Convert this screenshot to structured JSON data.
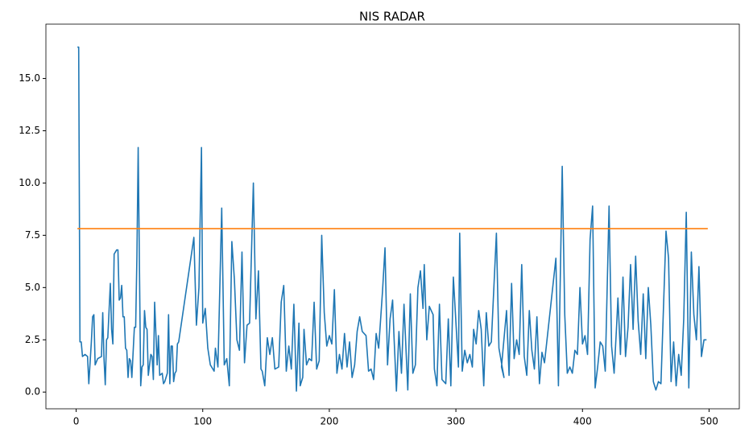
{
  "chart_data": {
    "type": "line",
    "title": "NIS RADAR",
    "xlim": [
      -23.9,
      523.9
    ],
    "ylim": [
      -0.8,
      17.6
    ],
    "xticks": [
      0,
      100,
      200,
      300,
      400,
      500
    ],
    "yticks": [
      {
        "value": 0,
        "label": "0.0"
      },
      {
        "value": 2.5,
        "label": "2.5"
      },
      {
        "value": 5,
        "label": "5.0"
      },
      {
        "value": 7.5,
        "label": "7.5"
      },
      {
        "value": 10,
        "label": "10.0"
      },
      {
        "value": 12.5,
        "label": "12.5"
      },
      {
        "value": 15,
        "label": "15.0"
      }
    ],
    "series": [
      {
        "color": "#1f77b4",
        "x": [
          1,
          2,
          3,
          4,
          5,
          7,
          9,
          10,
          12,
          13,
          14,
          15,
          17,
          20,
          21,
          22,
          23,
          24,
          25,
          27,
          28,
          29,
          30,
          31,
          32,
          33,
          34,
          35,
          36,
          37,
          38,
          39,
          40,
          41,
          42,
          43,
          44,
          46,
          47,
          48,
          49,
          50,
          51,
          52,
          53,
          54,
          55,
          56,
          57,
          59,
          60,
          61,
          62,
          64,
          65,
          66,
          68,
          69,
          70,
          72,
          73,
          74,
          75,
          76,
          77,
          78,
          79,
          80,
          81,
          93,
          95,
          97,
          99,
          100,
          102,
          104,
          106,
          109,
          110,
          112,
          115,
          117,
          119,
          121,
          123,
          125,
          127,
          129,
          131,
          133,
          135,
          137,
          140,
          142,
          144,
          146,
          147,
          149,
          151,
          153,
          155,
          157,
          160,
          162,
          164,
          166,
          168,
          170,
          172,
          174,
          176,
          177,
          179,
          180,
          182,
          184,
          186,
          188,
          190,
          192,
          194,
          196,
          198,
          200,
          202,
          204,
          206,
          208,
          210,
          212,
          214,
          216,
          218,
          220,
          222,
          224,
          226,
          229,
          231,
          233,
          235,
          237,
          239,
          242,
          244,
          246,
          248,
          250,
          251,
          253,
          255,
          257,
          259,
          262,
          264,
          266,
          268,
          270,
          272,
          274,
          275,
          277,
          279,
          282,
          283,
          285,
          287,
          289,
          292,
          294,
          296,
          298,
          302,
          303,
          305,
          307,
          309,
          311,
          313,
          314,
          316,
          318,
          320,
          322,
          324,
          326,
          328,
          330,
          332,
          334,
          338,
          336,
          340,
          342,
          344,
          346,
          348,
          350,
          352,
          354,
          356,
          358,
          360,
          362,
          364,
          366,
          368,
          370,
          379,
          381,
          384,
          386,
          388,
          390,
          392,
          394,
          396,
          398,
          400,
          402,
          404,
          406,
          408,
          410,
          412,
          414,
          416,
          418,
          421,
          423,
          425,
          427,
          428,
          430,
          432,
          434,
          436,
          438,
          440,
          442,
          444,
          446,
          448,
          450,
          452,
          454,
          456,
          458,
          460,
          462,
          466,
          468,
          470,
          472,
          474,
          476,
          478,
          480,
          482,
          484,
          486,
          488,
          490,
          492,
          494,
          496,
          498
        ],
        "values": [
          16.5,
          16.5,
          2.4,
          2.4,
          1.7,
          1.8,
          1.7,
          0.4,
          2.4,
          3.6,
          3.7,
          1.3,
          1.6,
          1.7,
          3.8,
          1.6,
          0.35,
          2.5,
          2.6,
          5.2,
          3.0,
          2.3,
          6.6,
          6.7,
          6.8,
          6.8,
          4.4,
          4.5,
          5.1,
          3.6,
          3.6,
          2.1,
          2.0,
          0.7,
          1.6,
          1.5,
          0.7,
          3.1,
          3.1,
          6.5,
          11.7,
          6.0,
          0.3,
          1.2,
          1.3,
          3.9,
          3.1,
          3.0,
          0.8,
          1.8,
          1.7,
          0.6,
          4.3,
          1.3,
          2.7,
          0.8,
          0.9,
          0.4,
          0.5,
          0.9,
          3.7,
          0.4,
          2.2,
          2.2,
          0.5,
          0.9,
          1.0,
          2.3,
          2.4,
          7.4,
          3.2,
          5.0,
          11.7,
          3.3,
          4.0,
          2.1,
          1.3,
          1.0,
          2.1,
          1.2,
          8.8,
          1.3,
          1.6,
          0.3,
          7.2,
          5.4,
          2.5,
          2.0,
          6.7,
          1.4,
          3.2,
          3.3,
          10.0,
          3.5,
          5.8,
          1.1,
          1.0,
          0.3,
          2.6,
          1.8,
          2.6,
          1.1,
          1.2,
          4.3,
          5.1,
          1.0,
          2.2,
          1.1,
          4.2,
          0.05,
          3.3,
          0.3,
          0.7,
          3.0,
          1.3,
          1.6,
          1.5,
          4.3,
          1.1,
          1.5,
          7.5,
          3.8,
          2.2,
          2.7,
          2.3,
          4.9,
          0.9,
          1.8,
          1.1,
          2.8,
          1.2,
          2.4,
          0.7,
          1.3,
          2.9,
          3.6,
          2.9,
          2.7,
          1.0,
          1.1,
          0.6,
          2.8,
          2.1,
          4.8,
          6.9,
          1.3,
          3.5,
          4.4,
          2.8,
          0.05,
          2.9,
          0.9,
          4.2,
          0.1,
          4.7,
          0.9,
          1.3,
          5.0,
          5.8,
          4.0,
          6.1,
          2.5,
          4.1,
          3.7,
          1.1,
          0.3,
          4.2,
          0.6,
          0.4,
          3.5,
          0.3,
          5.5,
          1.2,
          7.6,
          1.0,
          2.0,
          1.4,
          1.8,
          1.2,
          3.0,
          2.3,
          3.9,
          3.0,
          0.3,
          3.8,
          2.2,
          2.4,
          5.0,
          7.6,
          2.1,
          0.7,
          1.2,
          3.9,
          0.8,
          5.2,
          1.6,
          2.5,
          1.8,
          6.1,
          1.7,
          0.8,
          3.9,
          2.0,
          1.1,
          3.6,
          0.4,
          1.9,
          1.4,
          6.4,
          0.3,
          10.8,
          3.7,
          0.9,
          1.2,
          0.9,
          2.0,
          1.8,
          5.0,
          2.3,
          2.7,
          1.8,
          7.3,
          8.9,
          0.2,
          1.2,
          2.4,
          2.2,
          1.0,
          8.9,
          2.2,
          0.9,
          3.2,
          4.5,
          1.8,
          5.5,
          1.7,
          3.1,
          6.1,
          3.0,
          6.5,
          3.4,
          1.8,
          4.7,
          1.6,
          5.0,
          3.2,
          0.5,
          0.1,
          0.5,
          0.4,
          7.7,
          6.4,
          0.5,
          2.4,
          0.3,
          1.8,
          0.8,
          3.5,
          8.6,
          0.2,
          6.7,
          3.7,
          2.5,
          6.0,
          1.7,
          2.5,
          2.5
        ]
      },
      {
        "color": "#ff7f0e",
        "x": [
          1,
          499
        ],
        "values": [
          7.815,
          7.815
        ]
      }
    ]
  }
}
